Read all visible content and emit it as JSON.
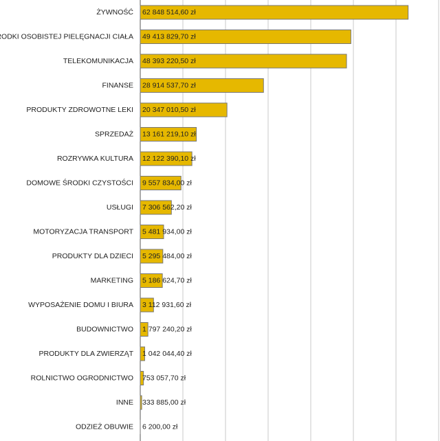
{
  "chart_data": {
    "type": "barh",
    "categories": [
      "ŻYWNOŚĆ",
      "ŚRODKI OSOBISTEJ PIELĘGNACJI CIAŁA",
      "TELEKOMUNIKACJA",
      "FINANSE",
      "PRODUKTY ZDROWOTNE LEKI",
      "SPRZEDAŻ",
      "ROZRYWKA KULTURA",
      "DOMOWE ŚRODKI CZYSTOŚCI",
      "USŁUGI",
      "MOTORYZACJA TRANSPORT",
      "PRODUKTY DLA DZIECI",
      "MARKETING",
      "WYPOSAŻENIE DOMU I BIURA",
      "BUDOWNICTWO",
      "PRODUKTY DLA ZWIERZĄT",
      "ROLNICTWO OGRODNICTWO",
      "INNE",
      "ODZIEŻ OBUWIE"
    ],
    "values": [
      62848514.6,
      49413829.7,
      48393220.5,
      28914537.7,
      20347010.5,
      13161219.1,
      12122390.1,
      9557834.0,
      7306562.2,
      5481934.0,
      5295484.0,
      5186624.7,
      3112931.6,
      1797240.2,
      1042044.4,
      753057.7,
      333885.0,
      6200.0
    ],
    "value_labels": [
      "62 848 514,60 zł",
      "49 413 829,70 zł",
      "48 393 220,50 zł",
      "28 914 537,70 zł",
      "20 347 010,50 zł",
      "13 161 219,10 zł",
      "12 122 390,10 zł",
      "9 557 834,00 zł",
      "7 306 562,20 zł",
      "5 481 934,00 zł",
      "5 295 484,00 zł",
      "5 186 624,70 zł",
      "3 112 931,60 zł",
      "1 797 240,20 zł",
      "1 042 044,40 zł",
      "753 057,70 zł",
      "333 885,00 zł",
      "6 200,00 zł"
    ],
    "color": "#e6b800",
    "xlim": [
      0,
      70000000
    ],
    "xticks": [
      0,
      10000000,
      20000000,
      30000000,
      40000000,
      50000000,
      60000000,
      70000000
    ],
    "grid": true
  }
}
